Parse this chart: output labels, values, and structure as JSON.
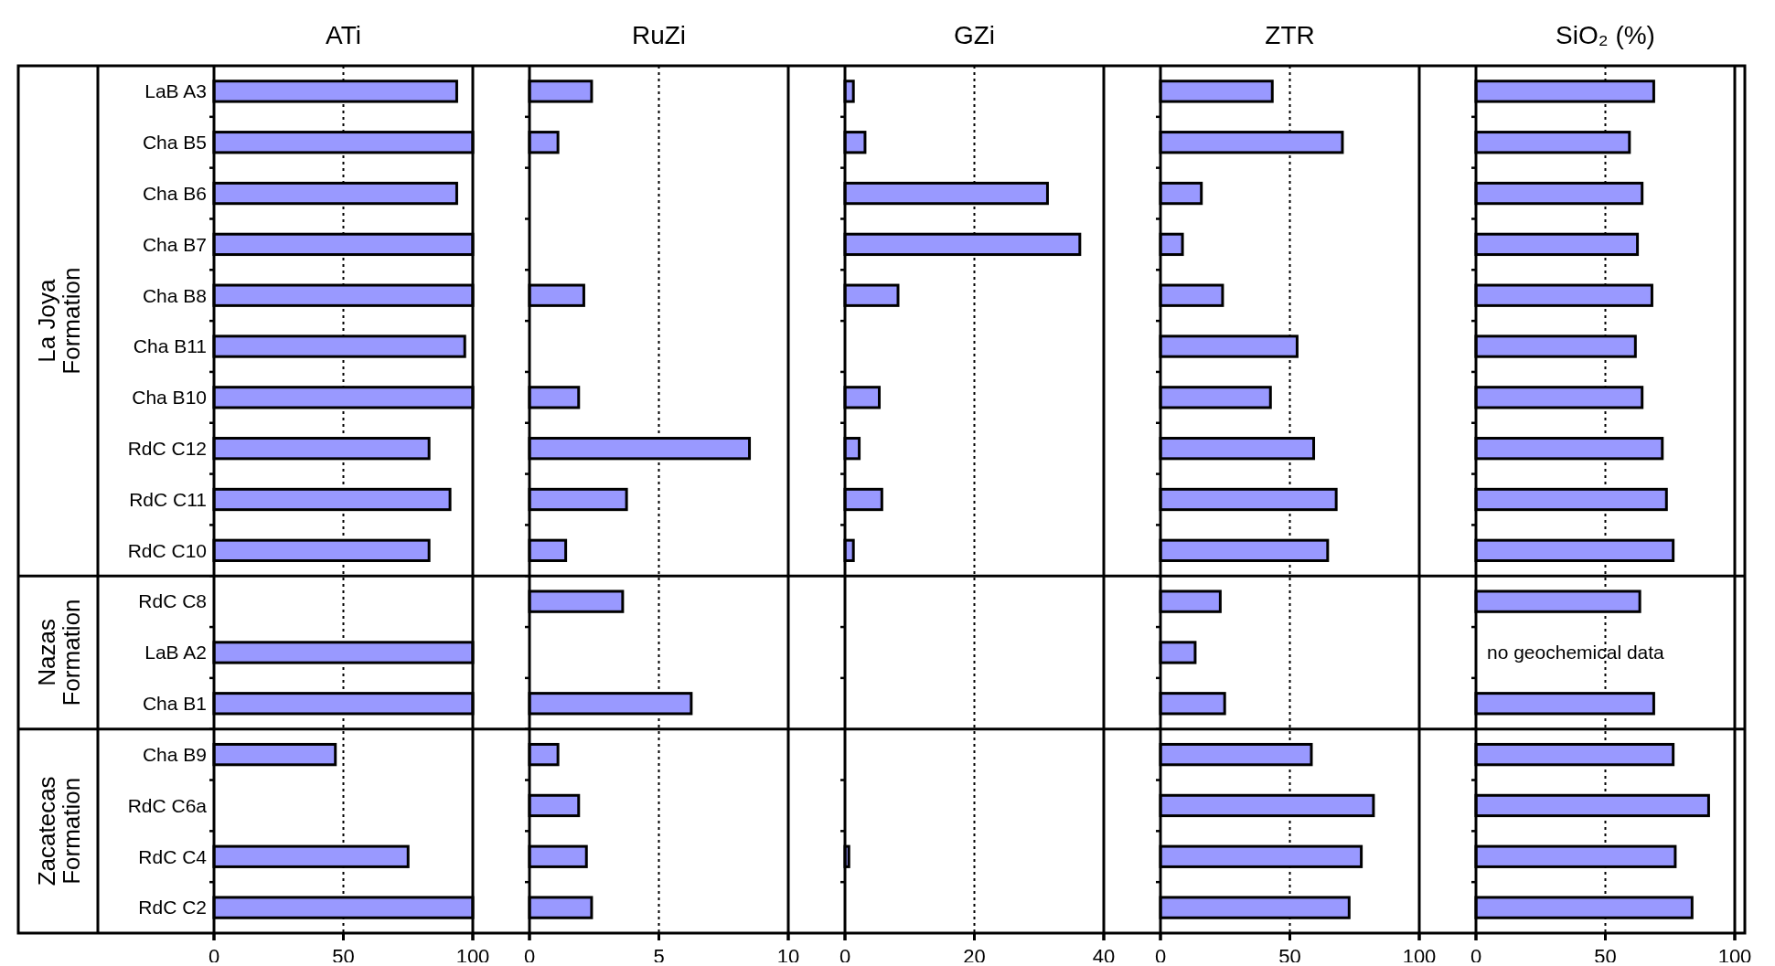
{
  "chart_data": [
    {
      "type": "bar",
      "orientation": "horizontal",
      "title": "ATi",
      "categories": [
        "LaB A3",
        "Cha B5",
        "Cha B6",
        "Cha B7",
        "Cha B8",
        "Cha B11",
        "Cha B10",
        "RdC C12",
        "RdC C11",
        "RdC C10",
        "RdC C8",
        "LaB A2",
        "Cha B1",
        "Cha B9",
        "RdC C6a",
        "RdC C4",
        "RdC C2"
      ],
      "values": [
        93.8,
        100,
        93.8,
        100,
        100,
        96.9,
        100,
        83.1,
        91.2,
        83.1,
        null,
        100,
        100,
        46.9,
        null,
        75,
        100
      ],
      "color": "#9999ff",
      "xlim": [
        0,
        100
      ],
      "xticks": [
        0,
        50,
        100
      ],
      "ref_lines": [
        {
          "axis": "x",
          "value": 50,
          "line_style": "dotted"
        }
      ],
      "annotations": [
        "La Joya Formation",
        "Nazas Formation",
        "Zacatecas Formation"
      ]
    },
    {
      "type": "bar",
      "orientation": "horizontal",
      "title": "RuZi",
      "categories": [
        null,
        null,
        null,
        null,
        null,
        null,
        null,
        null,
        null,
        null,
        null,
        null,
        null,
        null,
        null,
        null,
        null
      ],
      "values": [
        2.4,
        1.1,
        null,
        null,
        2.1,
        null,
        1.9,
        8.5,
        3.75,
        1.4,
        3.6,
        null,
        6.25,
        1.1,
        1.9,
        2.2,
        2.4
      ],
      "color": "#9999ff",
      "xlim": [
        0,
        10
      ],
      "xticks": [
        0,
        5,
        10
      ],
      "ref_lines": [
        {
          "axis": "x",
          "value": 5,
          "line_style": "dotted"
        }
      ]
    },
    {
      "type": "bar",
      "orientation": "horizontal",
      "title": "GZi",
      "categories": [
        null,
        null,
        null,
        null,
        null,
        null,
        null,
        null,
        null,
        null,
        null,
        null,
        null,
        null,
        null,
        null,
        null
      ],
      "values": [
        1.3,
        3.1,
        31.3,
        36.3,
        8.2,
        null,
        5.3,
        2.2,
        5.7,
        1.3,
        null,
        null,
        null,
        null,
        null,
        0.6,
        null
      ],
      "color": "#9999ff",
      "xlim": [
        0,
        40
      ],
      "xticks": [
        0,
        20,
        40
      ],
      "ref_lines": [
        {
          "axis": "x",
          "value": 20,
          "line_style": "dotted"
        }
      ]
    },
    {
      "type": "bar",
      "orientation": "horizontal",
      "title": "ZTR",
      "categories": [
        null,
        null,
        null,
        null,
        null,
        null,
        null,
        null,
        null,
        null,
        null,
        null,
        null,
        null,
        null,
        null,
        null
      ],
      "values": [
        43.2,
        70.3,
        15.8,
        8.5,
        24,
        52.8,
        42.5,
        59.2,
        67.9,
        64.6,
        23.1,
        13.4,
        24.8,
        58.3,
        82.3,
        77.6,
        72.9
      ],
      "color": "#9999ff",
      "xlim": [
        0,
        100
      ],
      "xticks": [
        0,
        50,
        100
      ],
      "ref_lines": [
        {
          "axis": "x",
          "value": 50,
          "line_style": "dotted"
        }
      ]
    },
    {
      "type": "bar",
      "orientation": "horizontal",
      "title": "SiO₂ (%)",
      "categories": [
        null,
        null,
        null,
        null,
        null,
        null,
        null,
        null,
        null,
        null,
        null,
        null,
        null,
        null,
        null,
        null,
        null
      ],
      "values": [
        68.7,
        59.3,
        64.2,
        62.4,
        68,
        61.6,
        64.2,
        72,
        73.6,
        76.2,
        63.3,
        null,
        68.7,
        76.2,
        89.9,
        77,
        83.5
      ],
      "color": "#9999ff",
      "xlim": [
        0,
        100
      ],
      "xticks": [
        0,
        50,
        100
      ],
      "ref_lines": [
        {
          "axis": "x",
          "value": 50,
          "line_style": "dotted"
        }
      ],
      "annotations": [
        "no geochemical data"
      ]
    }
  ]
}
